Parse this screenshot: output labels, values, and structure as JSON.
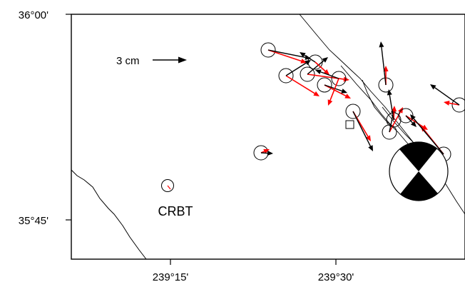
{
  "map": {
    "lat_labels": [
      "36°00'",
      "35°45'"
    ],
    "lon_labels": [
      "239°15'",
      "239°30'"
    ],
    "scale_label": "3 cm",
    "station_label": "CRBT",
    "colors": {
      "observed": "#000000",
      "modeled": "#ff0000",
      "frame": "#000000",
      "beachball_fill": "#000000"
    },
    "vectors": {
      "observed_color_name": "black",
      "modeled_color_name": "red",
      "count": 21
    }
  }
}
